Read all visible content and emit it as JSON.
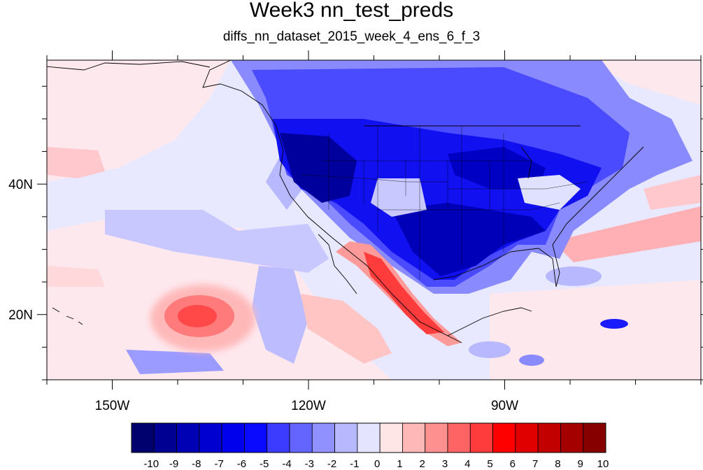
{
  "title": "Week3 nn_test_preds",
  "subtitle": "diffs_nn_dataset_2015_week_4_ens_6_f_3",
  "map": {
    "lon_range": [
      -160,
      -60
    ],
    "lat_range": [
      10,
      59
    ],
    "x_ticks": [
      {
        "lon": -150,
        "label": "150W"
      },
      {
        "lon": -120,
        "label": "120W"
      },
      {
        "lon": -90,
        "label": "90W"
      }
    ],
    "y_ticks": [
      {
        "lat": 40,
        "label": "40N"
      },
      {
        "lat": 20,
        "label": "20N"
      }
    ]
  },
  "colorbar": {
    "labels": [
      "-10",
      "-9",
      "-8",
      "-7",
      "-6",
      "-5",
      "-4",
      "-3",
      "-2",
      "-1",
      "0",
      "1",
      "2",
      "3",
      "4",
      "5",
      "6",
      "7",
      "8",
      "9",
      "10"
    ],
    "colors": [
      "#00006e",
      "#000092",
      "#0000b4",
      "#0000d0",
      "#0000ec",
      "#0a0aff",
      "#3c3cff",
      "#6464ff",
      "#9090ff",
      "#b8b8ff",
      "#e4e4ff",
      "#ffe6e6",
      "#ffb8b8",
      "#ff9090",
      "#ff6464",
      "#ff3c3c",
      "#ff0000",
      "#e00000",
      "#c20000",
      "#a40000",
      "#860000"
    ]
  }
}
